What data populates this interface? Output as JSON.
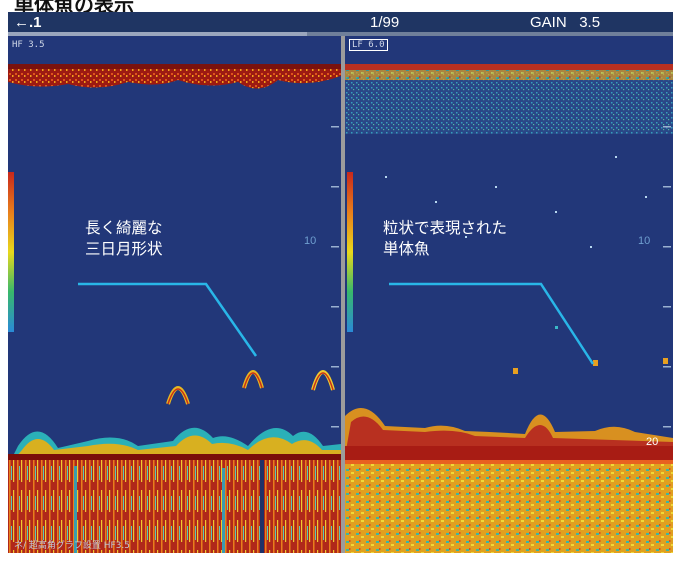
{
  "title": "単体魚の表示",
  "header": {
    "back_label": "←.1",
    "page": "1/99",
    "gain_label": "GAIN",
    "gain_value": "3.5"
  },
  "left_panel": {
    "tag": "HF 3.5",
    "annotation_line1": "長く綺麗な",
    "annotation_line2": "三日月形状",
    "depth_tick": "10",
    "footer": "ネ/ 超高角グラフ設置 HF3.5"
  },
  "right_panel": {
    "tag": "LF 6.0",
    "annotation_line1": "粒状で表現された",
    "annotation_line2": "単体魚",
    "depth_tick": "10",
    "depth_tick_bottom": "20"
  },
  "colors": {
    "background": "#223779",
    "annotation_line": "#29b6e8",
    "echo_strong": "#a81c14",
    "echo_medium": "#e8a21c",
    "echo_weak": "#2bb5c8"
  },
  "icons": [
    "back-arrow-icon",
    "color-scale-bar"
  ]
}
